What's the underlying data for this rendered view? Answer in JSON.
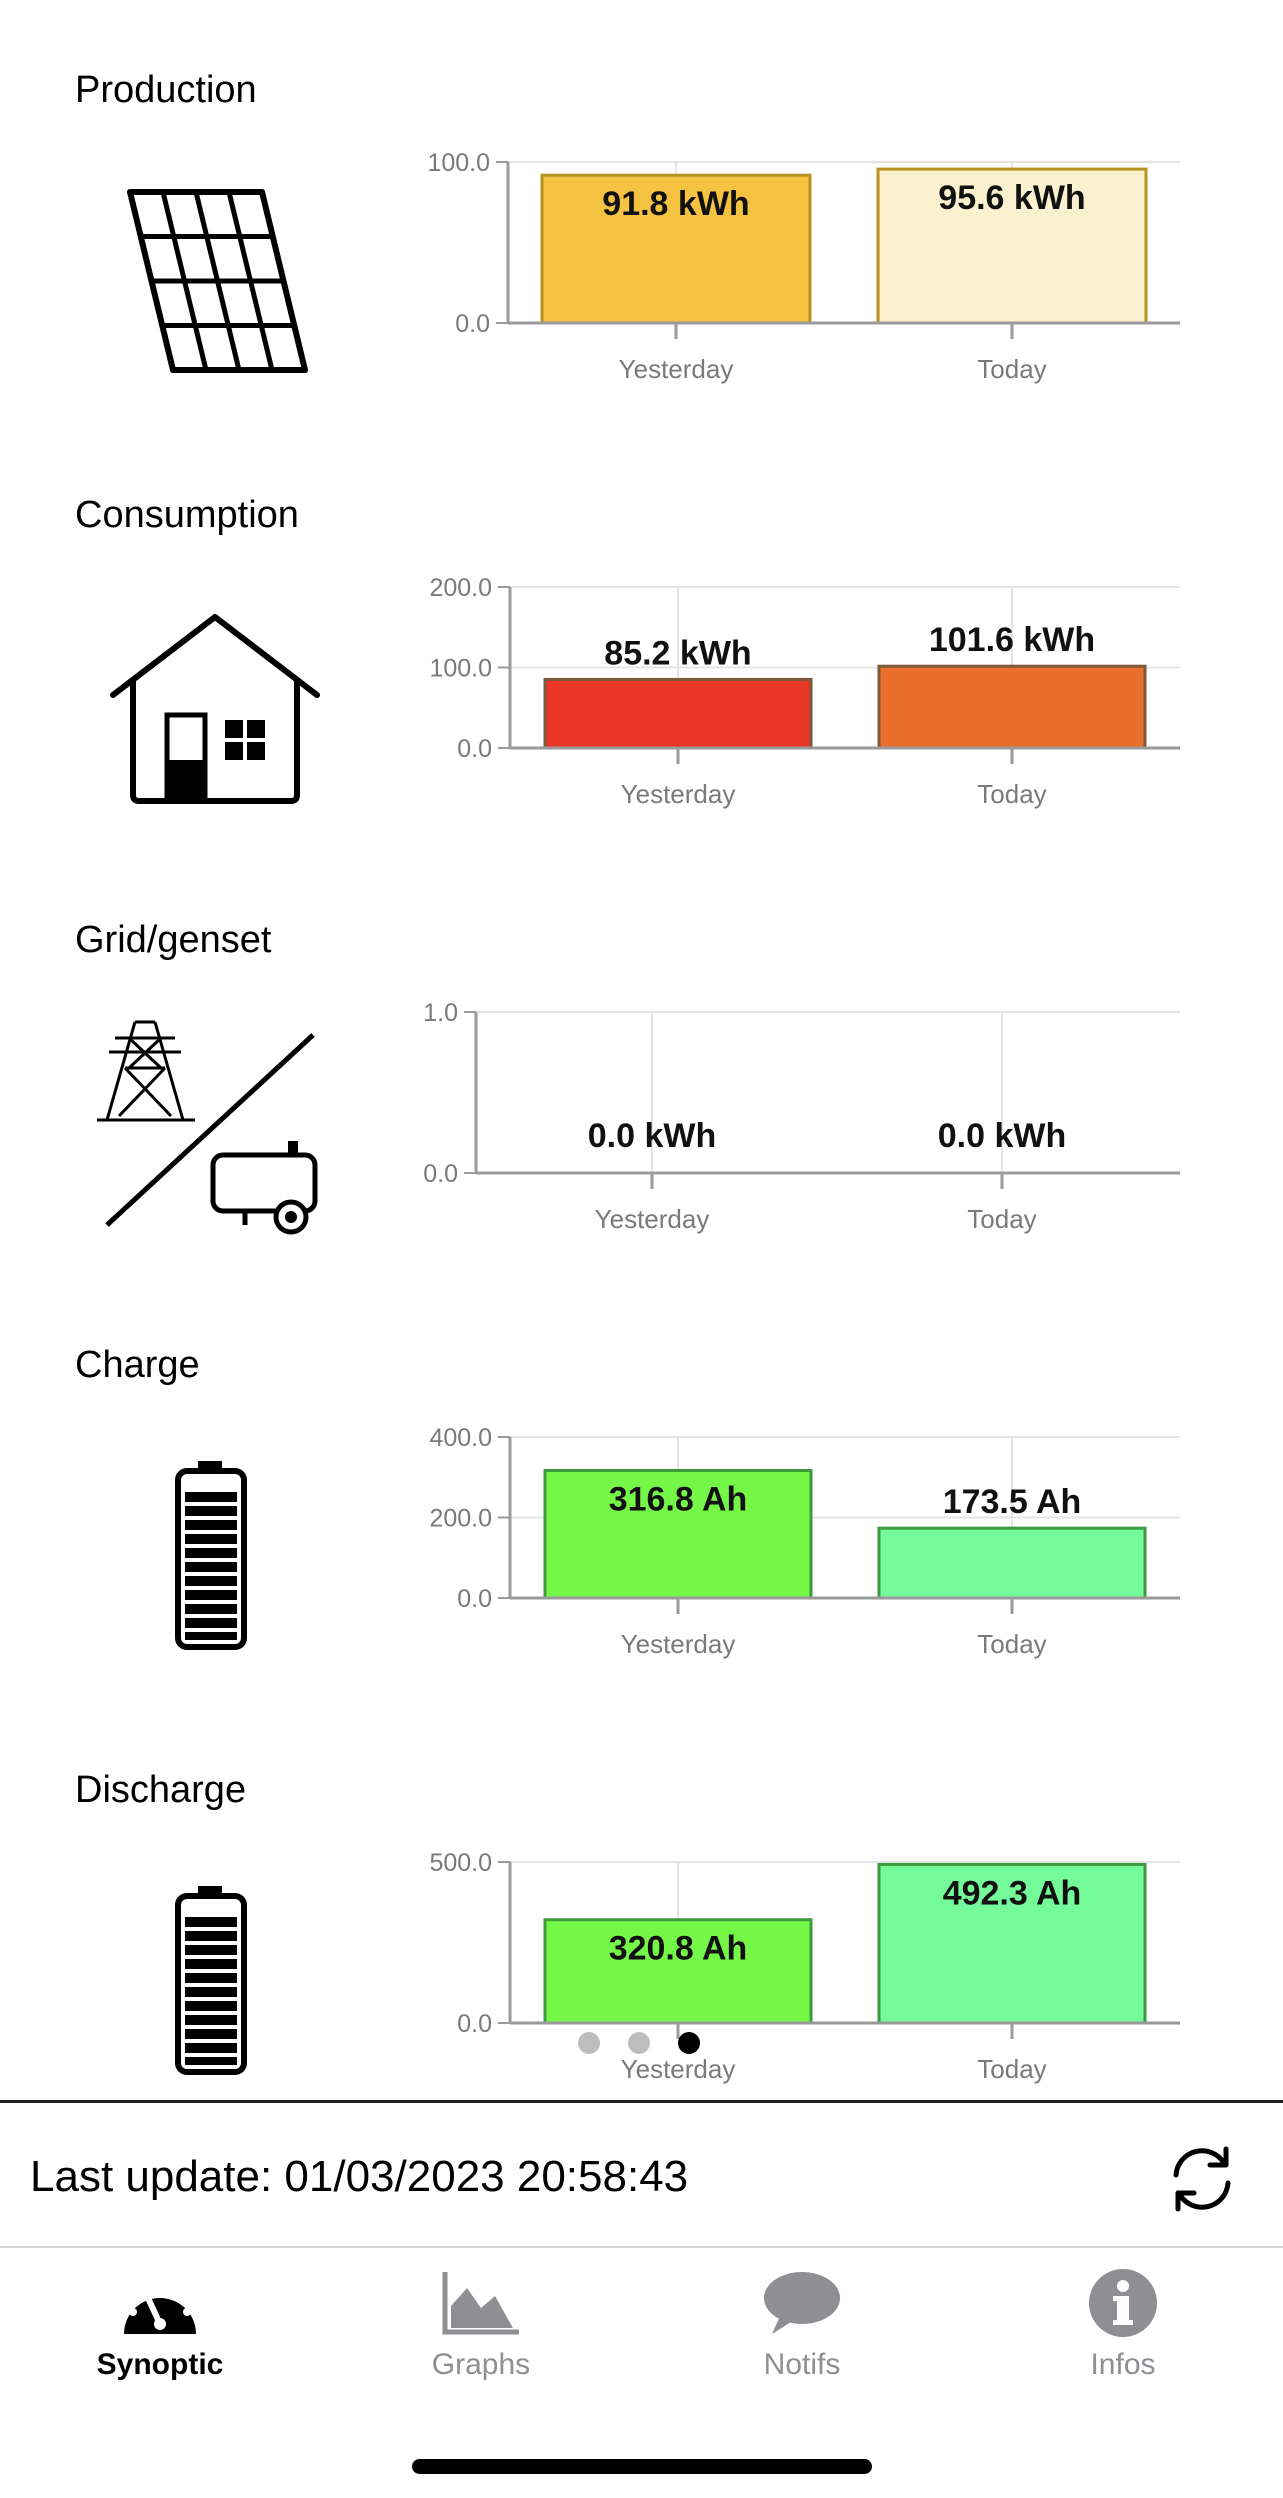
{
  "sections": [
    {
      "id": "production",
      "title": "Production",
      "icon": "solar-panel-icon",
      "chart_data": {
        "type": "bar",
        "categories": [
          "Yesterday",
          "Today"
        ],
        "values": [
          91.8,
          95.6
        ],
        "value_labels": [
          "91.8 kWh",
          "95.6 kWh"
        ],
        "ytick_labels": [
          "0.0",
          "100.0"
        ],
        "ylim": [
          0,
          100
        ],
        "colors": [
          "#f5c242",
          "#fcf1cf"
        ],
        "border_color": "#b59222",
        "labels_inside": [
          true,
          true
        ]
      }
    },
    {
      "id": "consumption",
      "title": "Consumption",
      "icon": "house-icon",
      "chart_data": {
        "type": "bar",
        "categories": [
          "Yesterday",
          "Today"
        ],
        "values": [
          85.2,
          101.6
        ],
        "value_labels": [
          "85.2 kWh",
          "101.6 kWh"
        ],
        "ytick_labels": [
          "0.0",
          "100.0",
          "200.0"
        ],
        "ylim": [
          0,
          200
        ],
        "colors": [
          "#ea3626",
          "#ea6e2c"
        ],
        "border_color": "#7a5a3a",
        "labels_inside": [
          false,
          false
        ]
      }
    },
    {
      "id": "grid",
      "title": "Grid/genset",
      "icon": "grid-genset-icon",
      "chart_data": {
        "type": "bar",
        "categories": [
          "Yesterday",
          "Today"
        ],
        "values": [
          0.0,
          0.0
        ],
        "value_labels": [
          "0.0 kWh",
          "0.0 kWh"
        ],
        "ytick_labels": [
          "0.0",
          "1.0"
        ],
        "ylim": [
          0,
          1
        ],
        "colors": [
          "#999999",
          "#999999"
        ],
        "border_color": "#888888",
        "labels_inside": [
          false,
          false
        ]
      }
    },
    {
      "id": "charge",
      "title": "Charge",
      "icon": "battery-icon",
      "chart_data": {
        "type": "bar",
        "categories": [
          "Yesterday",
          "Today"
        ],
        "values": [
          316.8,
          173.5
        ],
        "value_labels": [
          "316.8 Ah",
          "173.5 Ah"
        ],
        "ytick_labels": [
          "0.0",
          "200.0",
          "400.0"
        ],
        "ylim": [
          0,
          400
        ],
        "colors": [
          "#74f746",
          "#74fa98"
        ],
        "border_color": "#3f9a3f",
        "labels_inside": [
          true,
          false
        ]
      }
    },
    {
      "id": "discharge",
      "title": "Discharge",
      "icon": "battery-icon",
      "chart_data": {
        "type": "bar",
        "categories": [
          "Yesterday",
          "Today"
        ],
        "values": [
          320.8,
          492.3
        ],
        "value_labels": [
          "320.8 Ah",
          "492.3 Ah"
        ],
        "ytick_labels": [
          "0.0",
          "500.0"
        ],
        "ylim": [
          0,
          500
        ],
        "colors": [
          "#74f746",
          "#74fa98"
        ],
        "border_color": "#3f9a3f",
        "labels_inside": [
          true,
          true
        ]
      }
    }
  ],
  "pager": {
    "count": 3,
    "active": 2,
    "active_color": "#000000",
    "inactive_color": "#bdbdbd"
  },
  "status": {
    "last_update": "Last update: 01/03/2023 20:58:43"
  },
  "tabs": [
    {
      "id": "synoptic",
      "label": "Synoptic",
      "icon": "gauge-icon",
      "active": true
    },
    {
      "id": "graphs",
      "label": "Graphs",
      "icon": "area-chart-icon",
      "active": false
    },
    {
      "id": "notifs",
      "label": "Notifs",
      "icon": "speech-bubble-icon",
      "active": false
    },
    {
      "id": "infos",
      "label": "Infos",
      "icon": "info-icon",
      "active": false
    }
  ]
}
